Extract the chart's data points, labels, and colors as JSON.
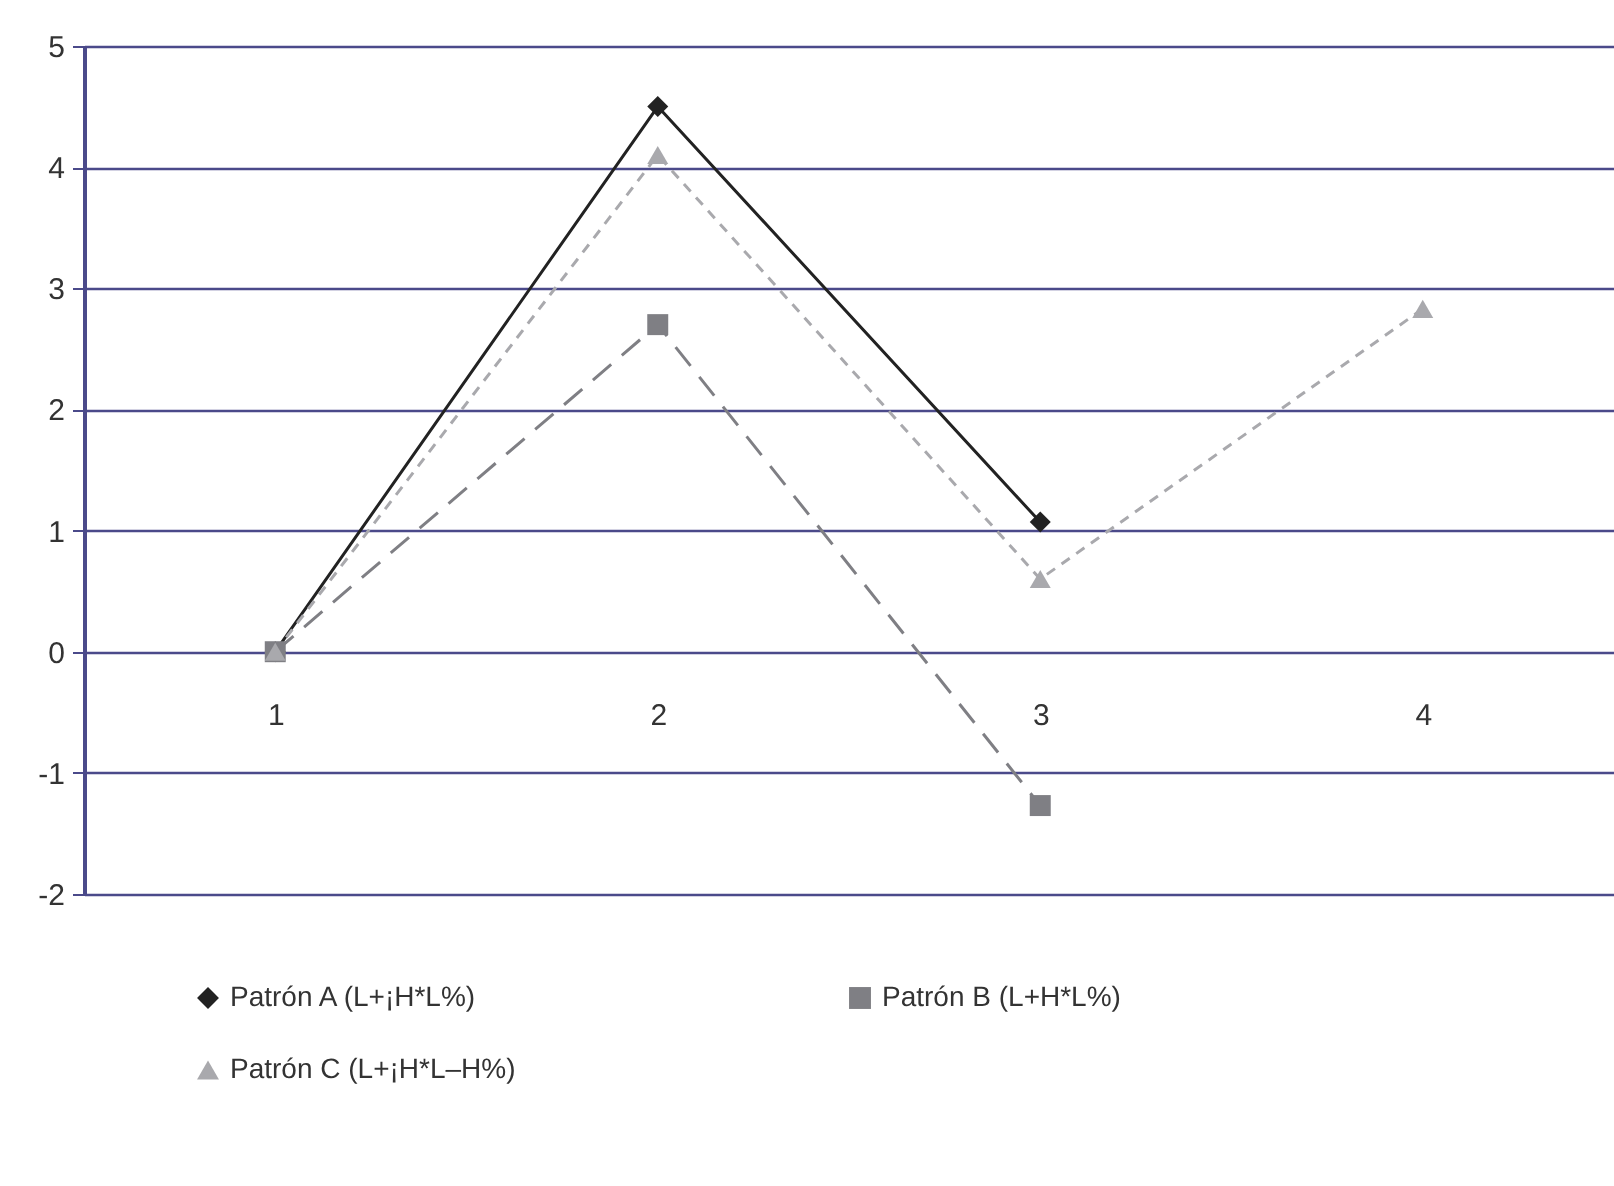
{
  "chart_data": {
    "type": "line",
    "categories": [
      "1",
      "2",
      "3",
      "4"
    ],
    "ylim": [
      -2,
      5
    ],
    "yticks": [
      -2,
      -1,
      0,
      1,
      2,
      3,
      4,
      5
    ],
    "grid": "y",
    "legend": "bottom",
    "series": [
      {
        "name": "Patrón A (L+¡H*L%)",
        "color": "#222222",
        "values": [
          0,
          4.5,
          1.07,
          null
        ],
        "marker": "diamond",
        "line_style": "solid"
      },
      {
        "name": "Patrón B (L+H*L%)",
        "color": "#7f7f84",
        "values": [
          0,
          2.7,
          -1.27,
          null
        ],
        "marker": "square",
        "line_style": "dashed"
      },
      {
        "name": "Patrón C (L+¡H*L–H%)",
        "color": "#a9a9ad",
        "values": [
          0,
          4.1,
          0.6,
          2.83
        ],
        "marker": "triangle",
        "line_style": "dotted"
      }
    ]
  }
}
